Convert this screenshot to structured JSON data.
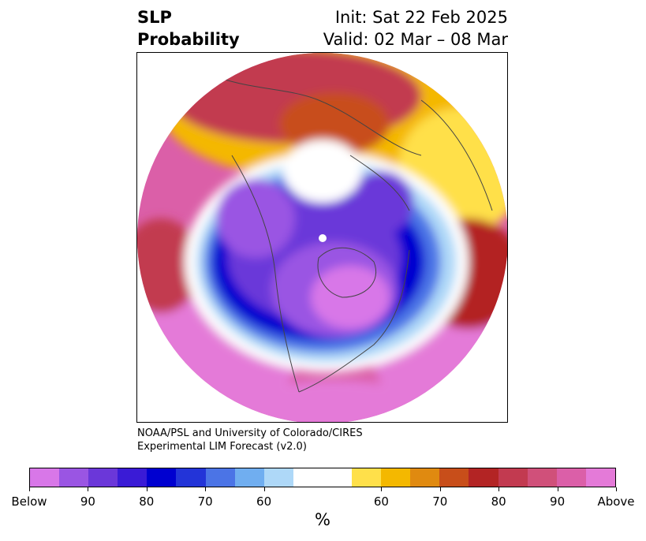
{
  "title": {
    "variable_line1": "SLP",
    "variable_line2": "Probability",
    "init": "Init: Sat 22 Feb 2025",
    "valid": "Valid: 02 Mar – 08 Mar"
  },
  "credit": {
    "line1": "NOAA/PSL and University of Colorado/CIRES",
    "line2": "Experimental LIM Forecast (v2.0)"
  },
  "colorbar": {
    "colors": [
      "#d877e8",
      "#9a55e3",
      "#6b37d9",
      "#3a1bd6",
      "#0000d0",
      "#2334d8",
      "#4b74e6",
      "#70aef0",
      "#aed8f8",
      "#ffffff",
      "#ffffff",
      "#ffe04a",
      "#f4b800",
      "#e08a10",
      "#c84e1a",
      "#b32424",
      "#c23a50",
      "#d0507a",
      "#db5fa8",
      "#e47ad8"
    ],
    "tick_labels": [
      "Below",
      "90",
      "80",
      "70",
      "60",
      "60",
      "70",
      "80",
      "90",
      "Above"
    ],
    "unit": "%"
  },
  "map": {
    "projection": "north-polar-stereographic",
    "field": "sea-level-pressure-tercile-probability",
    "patterns": [
      {
        "region": "North Pacific / western Europe-Atlantic",
        "category": "Above",
        "color": "#e47ad8"
      },
      {
        "region": "Arctic / Canada / northern North America",
        "category": "Below",
        "color": "#9a55e3"
      },
      {
        "region": "Siberia / northern Russia",
        "category": "Above",
        "color": "#b32424"
      },
      {
        "region": "Eastern Asia",
        "category": "Above",
        "color": "#f4b800"
      }
    ]
  }
}
